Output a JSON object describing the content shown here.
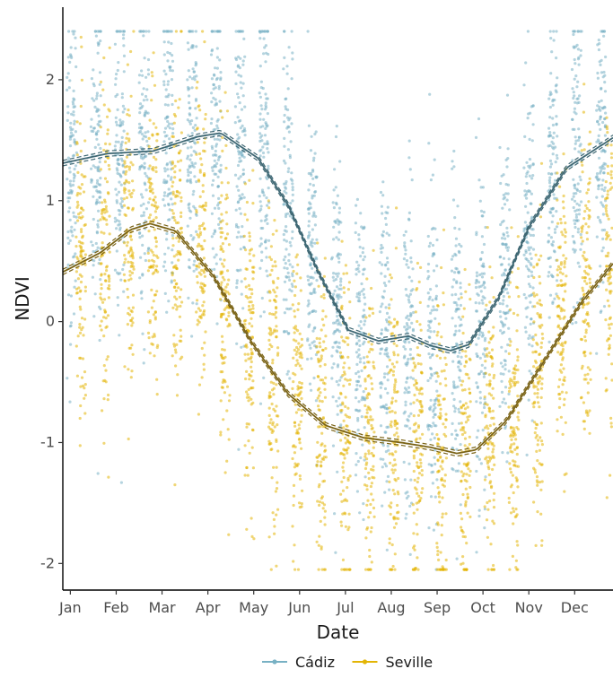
{
  "chart_data": {
    "type": "scatter",
    "xlabel": "Date",
    "ylabel": "NDVI",
    "x_ticks": [
      "Jan",
      "Feb",
      "Mar",
      "Apr",
      "May",
      "Jun",
      "Jul",
      "Aug",
      "Sep",
      "Oct",
      "Nov",
      "Dec"
    ],
    "y_ticks": [
      -2,
      -1,
      0,
      1,
      2
    ],
    "ylim": [
      -2.22,
      2.6
    ],
    "xlim_days": [
      0,
      366
    ],
    "grid": false,
    "legend_position": "bottom",
    "series": [
      {
        "name": "Cádiz",
        "color": "#78b1c4",
        "line_color": "#3f6874",
        "smooth": [
          {
            "day": 0,
            "ndvi": 1.31
          },
          {
            "day": 30,
            "ndvi": 1.39
          },
          {
            "day": 60,
            "ndvi": 1.41
          },
          {
            "day": 90,
            "ndvi": 1.53
          },
          {
            "day": 105,
            "ndvi": 1.56
          },
          {
            "day": 130,
            "ndvi": 1.35
          },
          {
            "day": 150,
            "ndvi": 0.96
          },
          {
            "day": 170,
            "ndvi": 0.41
          },
          {
            "day": 190,
            "ndvi": -0.07
          },
          {
            "day": 210,
            "ndvi": -0.16
          },
          {
            "day": 230,
            "ndvi": -0.12
          },
          {
            "day": 245,
            "ndvi": -0.2
          },
          {
            "day": 258,
            "ndvi": -0.24
          },
          {
            "day": 270,
            "ndvi": -0.19
          },
          {
            "day": 290,
            "ndvi": 0.2
          },
          {
            "day": 310,
            "ndvi": 0.78
          },
          {
            "day": 335,
            "ndvi": 1.27
          },
          {
            "day": 366,
            "ndvi": 1.52
          }
        ]
      },
      {
        "name": "Seville",
        "color": "#e3b505",
        "line_color": "#7a6316",
        "smooth": [
          {
            "day": 0,
            "ndvi": 0.41
          },
          {
            "day": 25,
            "ndvi": 0.57
          },
          {
            "day": 45,
            "ndvi": 0.76
          },
          {
            "day": 58,
            "ndvi": 0.81
          },
          {
            "day": 75,
            "ndvi": 0.75
          },
          {
            "day": 100,
            "ndvi": 0.38
          },
          {
            "day": 125,
            "ndvi": -0.16
          },
          {
            "day": 150,
            "ndvi": -0.6
          },
          {
            "day": 175,
            "ndvi": -0.86
          },
          {
            "day": 200,
            "ndvi": -0.96
          },
          {
            "day": 225,
            "ndvi": -1.0
          },
          {
            "day": 245,
            "ndvi": -1.04
          },
          {
            "day": 262,
            "ndvi": -1.09
          },
          {
            "day": 275,
            "ndvi": -1.06
          },
          {
            "day": 295,
            "ndvi": -0.82
          },
          {
            "day": 320,
            "ndvi": -0.33
          },
          {
            "day": 345,
            "ndvi": 0.16
          },
          {
            "day": 366,
            "ndvi": 0.48
          }
        ],
        "day_offset": 6
      }
    ],
    "observation_days": [
      6,
      22,
      38,
      54,
      70,
      86,
      102,
      118,
      134,
      150,
      166,
      182,
      198,
      214,
      230,
      246,
      262,
      278,
      294,
      310,
      326,
      342,
      358
    ]
  }
}
